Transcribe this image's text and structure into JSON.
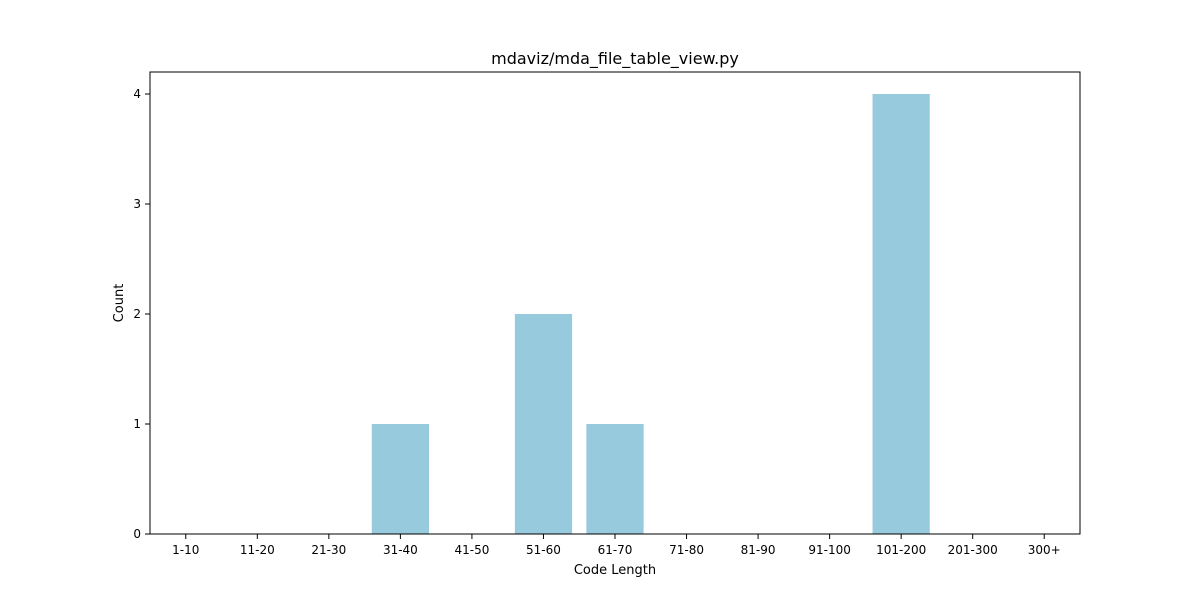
{
  "chart_data": {
    "type": "bar",
    "title": "mdaviz/mda_file_table_view.py",
    "xlabel": "Code Length",
    "ylabel": "Count",
    "categories": [
      "1-10",
      "11-20",
      "21-30",
      "31-40",
      "41-50",
      "51-60",
      "61-70",
      "71-80",
      "81-90",
      "91-100",
      "101-200",
      "201-300",
      "300+"
    ],
    "values": [
      0,
      0,
      0,
      1,
      0,
      2,
      1,
      0,
      0,
      0,
      4,
      0,
      0
    ],
    "ylim": [
      0,
      4.2
    ],
    "yticks": [
      0,
      1,
      2,
      3,
      4
    ],
    "grid": false,
    "bar_color": "#96cadc"
  }
}
